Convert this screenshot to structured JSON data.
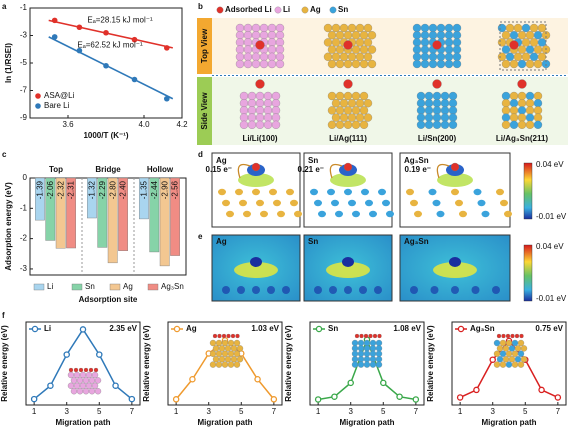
{
  "panel_labels": [
    "a",
    "b",
    "c",
    "d",
    "e",
    "f"
  ],
  "chart_data": [
    {
      "type": "scatter",
      "x_label": "1000/T (K⁻¹)",
      "y_label": "ln (1/RSEI)",
      "x": [
        3.53,
        3.66,
        3.8,
        3.95,
        4.12
      ],
      "series": [
        {
          "name": "ASA@Li",
          "color": "#e0312a",
          "values": [
            -1.9,
            -2.4,
            -2.8,
            -3.3,
            -3.9
          ]
        },
        {
          "name": "Bare Li",
          "color": "#2f79b9",
          "values": [
            -3.1,
            -4.1,
            -5.2,
            -6.2,
            -7.6
          ]
        }
      ],
      "annotations": [
        "Eₐ=28.15 kJ mol⁻¹",
        "Eₐ=62.52 kJ mol⁻¹"
      ],
      "fit_lines": true,
      "legend": "lower-left",
      "xlim": [
        3.4,
        4.2
      ],
      "xticks": [
        3.6,
        {
          "value": 4.0,
          "label": "4.0"
        },
        4.2
      ],
      "ylim": [
        -9,
        -1
      ],
      "yticks": [
        -1,
        -3,
        -5,
        -7,
        -9
      ]
    },
    {
      "type": "bar",
      "x_label": "Adsorption site",
      "y_label": "Adsorption energy (eV)",
      "categories": [
        "Top",
        "Bridge",
        "Hollow"
      ],
      "series": [
        {
          "name": "Li",
          "color": "#a9d5ef",
          "values": [
            -1.39,
            -1.32,
            -1.35
          ],
          "value_labels": [
            "-1.39",
            "-1.32",
            "-1.35"
          ]
        },
        {
          "name": "Sn",
          "color": "#86d3a8",
          "values": [
            -2.06,
            -2.29,
            -2.44
          ],
          "value_labels": [
            "-2.06",
            "-2.29",
            "-2.44"
          ]
        },
        {
          "name": "Ag",
          "color": "#f3c791",
          "values": [
            -2.32,
            -2.8,
            -2.9
          ],
          "value_labels": [
            "-2.32",
            "-2.80",
            "-2.90"
          ]
        },
        {
          "name": "Ag₃Sn",
          "color": "#f08c84",
          "values": [
            -2.31,
            -2.4,
            -2.56
          ],
          "value_labels": [
            "-2.31",
            "-2.40",
            "-2.56"
          ]
        }
      ],
      "legend": "bottom",
      "ylim": [
        -3.2,
        0
      ],
      "yticks": [
        0,
        -1,
        -2,
        -3
      ]
    },
    {
      "type": "line",
      "x_label": "Migration path",
      "y_label": "Relative energy (eV)",
      "x": [
        1,
        2,
        3,
        4,
        5,
        6,
        7
      ],
      "series": [
        {
          "name": "Li",
          "color": "#2f79b9",
          "values": [
            0,
            0.45,
            1.5,
            2.35,
            1.5,
            0.45,
            0
          ]
        }
      ],
      "annotations": [
        "2.35 eV"
      ],
      "xlim": [
        0.5,
        7.5
      ],
      "xticks": [
        1,
        3,
        5,
        7
      ],
      "ylim": [
        -0.2,
        2.6
      ]
    },
    {
      "type": "line",
      "x_label": "Migration path",
      "y_label": "Relative energy (eV)",
      "x": [
        1,
        2,
        3,
        4,
        5,
        6,
        7
      ],
      "series": [
        {
          "name": "Ag",
          "color": "#ef9a2e",
          "values": [
            0,
            0.35,
            0.8,
            1.03,
            0.8,
            0.35,
            0
          ]
        }
      ],
      "annotations": [
        "1.03 eV"
      ],
      "xlim": [
        0.5,
        7.5
      ],
      "xticks": [
        1,
        3,
        5,
        7
      ],
      "ylim": [
        -0.1,
        1.35
      ]
    },
    {
      "type": "line",
      "x_label": "Migration path",
      "y_label": "Relative energy (eV)",
      "x": [
        1,
        2,
        3,
        4,
        5,
        6,
        7
      ],
      "series": [
        {
          "name": "Sn",
          "color": "#3aa84a",
          "values": [
            0,
            0.05,
            0.3,
            1.08,
            0.3,
            0.05,
            0
          ]
        }
      ],
      "annotations": [
        "1.08 eV"
      ],
      "xlim": [
        0.5,
        7.5
      ],
      "xticks": [
        1,
        3,
        5,
        7
      ],
      "ylim": [
        -0.1,
        1.4
      ]
    },
    {
      "type": "line",
      "x_label": "Migration path",
      "y_label": "Relative energy (eV)",
      "x": [
        1,
        2,
        3,
        4,
        5,
        6,
        7
      ],
      "series": [
        {
          "name": "Ag₃Sn",
          "color": "#d92020",
          "values": [
            0,
            0.1,
            0.5,
            0.75,
            0.5,
            0.1,
            0
          ]
        }
      ],
      "annotations": [
        "0.75 eV"
      ],
      "xlim": [
        0.5,
        7.5
      ],
      "xticks": [
        1,
        3,
        5,
        7
      ],
      "ylim": [
        -0.1,
        1.0
      ]
    }
  ],
  "structures": {
    "legend": [
      "Adsorbed Li",
      "Li",
      "Ag",
      "Sn"
    ],
    "views": [
      "Top View",
      "Side View"
    ],
    "surfaces": [
      "Li/Li(100)",
      "Li/Ag(111)",
      "Li/Sn(200)",
      "Li/Ag₃Sn(211)"
    ]
  },
  "charge_density": {
    "systems": [
      "Ag",
      "Sn",
      "Ag₃Sn"
    ],
    "transfers": [
      "0.15 e⁻",
      "0.21 e⁻",
      "0.19 e⁻"
    ],
    "colorbar": [
      "0.04 eV",
      "-0.01 eV"
    ]
  },
  "potential_maps": {
    "systems": [
      "Ag",
      "Sn",
      "Ag₃Sn"
    ],
    "colorbar": [
      "0.04 eV",
      "-0.01 eV"
    ]
  }
}
